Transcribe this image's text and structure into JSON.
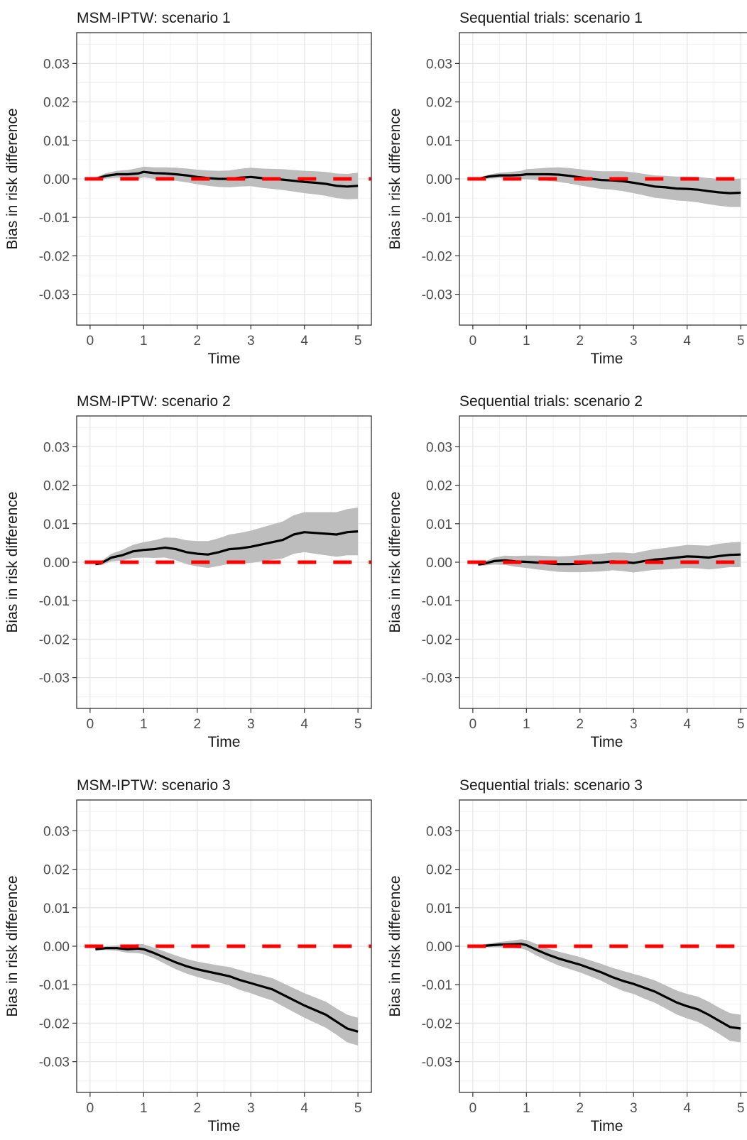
{
  "chart_data": [
    {
      "type": "line",
      "title": "MSM-IPTW: scenario 1",
      "xlabel": "Time",
      "ylabel": "Bias in risk difference",
      "xlim": [
        -0.25,
        5.25
      ],
      "ylim": [
        -0.038,
        0.038
      ],
      "x_ticks": [
        "0",
        "1",
        "2",
        "3",
        "4",
        "5"
      ],
      "y_ticks": [
        "0.03",
        "0.02",
        "0.01",
        "0.00",
        "-0.01",
        "-0.02",
        "-0.03"
      ],
      "grid": true,
      "reference_line": {
        "y": 0,
        "style": "dashed",
        "color": "#ff0000"
      },
      "series": [
        {
          "x": [
            0.1,
            0.3,
            0.5,
            0.7,
            0.9,
            1.0,
            1.2,
            1.4,
            1.6,
            1.8,
            2.0,
            2.2,
            2.4,
            2.6,
            2.8,
            3.0,
            3.2,
            3.4,
            3.6,
            3.8,
            4.0,
            4.2,
            4.4,
            4.6,
            4.8,
            5.0
          ],
          "y": [
            0.0,
            0.0008,
            0.0012,
            0.0012,
            0.0014,
            0.0018,
            0.0015,
            0.0014,
            0.0012,
            0.0009,
            0.0005,
            0.0002,
            0.0,
            0.0,
            0.0003,
            0.0005,
            0.0002,
            0.0,
            -0.0002,
            -0.0005,
            -0.0008,
            -0.001,
            -0.0013,
            -0.0018,
            -0.002,
            -0.0018
          ],
          "lower": [
            -0.0004,
            0.0001,
            0.0003,
            0.0001,
            0.0,
            0.0004,
            0.0,
            -0.0002,
            -0.0005,
            -0.0009,
            -0.0014,
            -0.0018,
            -0.0021,
            -0.0022,
            -0.002,
            -0.0019,
            -0.0023,
            -0.0026,
            -0.0029,
            -0.0033,
            -0.0037,
            -0.004,
            -0.0044,
            -0.005,
            -0.0053,
            -0.0052
          ],
          "upper": [
            0.0004,
            0.0015,
            0.0021,
            0.0023,
            0.0028,
            0.0032,
            0.003,
            0.003,
            0.0029,
            0.0027,
            0.0024,
            0.0022,
            0.0021,
            0.0022,
            0.0026,
            0.0029,
            0.0027,
            0.0026,
            0.0025,
            0.0023,
            0.0021,
            0.002,
            0.0018,
            0.0014,
            0.0013,
            0.0016
          ],
          "color": "#000000",
          "band_color": "#bdbdbd"
        }
      ]
    },
    {
      "type": "line",
      "title": "Sequential trials: scenario 1",
      "xlabel": "Time",
      "ylabel": "Bias in risk difference",
      "xlim": [
        -0.25,
        5.25
      ],
      "ylim": [
        -0.038,
        0.038
      ],
      "x_ticks": [
        "0",
        "1",
        "2",
        "3",
        "4",
        "5"
      ],
      "y_ticks": [
        "0.03",
        "0.02",
        "0.01",
        "0.00",
        "-0.01",
        "-0.02",
        "-0.03"
      ],
      "grid": true,
      "reference_line": {
        "y": 0,
        "style": "dashed",
        "color": "#ff0000"
      },
      "series": [
        {
          "x": [
            0.1,
            0.3,
            0.5,
            0.7,
            0.9,
            1.0,
            1.2,
            1.4,
            1.6,
            1.8,
            2.0,
            2.2,
            2.4,
            2.6,
            2.8,
            3.0,
            3.2,
            3.4,
            3.6,
            3.8,
            4.0,
            4.2,
            4.4,
            4.6,
            4.8,
            5.0
          ],
          "y": [
            0.0,
            0.0006,
            0.0009,
            0.0009,
            0.001,
            0.0012,
            0.0012,
            0.0012,
            0.0011,
            0.0008,
            0.0004,
            0.0,
            -0.0003,
            -0.0004,
            -0.0006,
            -0.001,
            -0.0015,
            -0.002,
            -0.0022,
            -0.0025,
            -0.0026,
            -0.0028,
            -0.0032,
            -0.0035,
            -0.0037,
            -0.0036
          ],
          "lower": [
            -0.0003,
            0.0001,
            0.0002,
            0.0,
            -0.0001,
            -0.0001,
            -0.0003,
            -0.0005,
            -0.0008,
            -0.0012,
            -0.0017,
            -0.0022,
            -0.0026,
            -0.0028,
            -0.0032,
            -0.0037,
            -0.0043,
            -0.0049,
            -0.0052,
            -0.0056,
            -0.0058,
            -0.0061,
            -0.0066,
            -0.007,
            -0.0073,
            -0.0073
          ],
          "upper": [
            0.0003,
            0.0011,
            0.0016,
            0.0018,
            0.0021,
            0.0025,
            0.0027,
            0.0029,
            0.003,
            0.0028,
            0.0025,
            0.0022,
            0.002,
            0.002,
            0.002,
            0.0017,
            0.0013,
            0.0009,
            0.0008,
            0.0006,
            0.0006,
            0.0005,
            0.0002,
            0.0,
            -0.0001,
            0.0001
          ],
          "color": "#000000",
          "band_color": "#bdbdbd"
        }
      ]
    },
    {
      "type": "line",
      "title": "MSM-IPTW: scenario 2",
      "xlabel": "Time",
      "ylabel": "Bias in risk difference",
      "xlim": [
        -0.25,
        5.25
      ],
      "ylim": [
        -0.038,
        0.038
      ],
      "x_ticks": [
        "0",
        "1",
        "2",
        "3",
        "4",
        "5"
      ],
      "y_ticks": [
        "0.03",
        "0.02",
        "0.01",
        "0.00",
        "-0.01",
        "-0.02",
        "-0.03"
      ],
      "grid": true,
      "reference_line": {
        "y": 0,
        "style": "dashed",
        "color": "#ff0000"
      },
      "series": [
        {
          "x": [
            0.1,
            0.2,
            0.4,
            0.6,
            0.8,
            1.0,
            1.2,
            1.4,
            1.6,
            1.8,
            2.0,
            2.2,
            2.4,
            2.6,
            2.8,
            3.0,
            3.2,
            3.4,
            3.6,
            3.8,
            4.0,
            4.2,
            4.4,
            4.6,
            4.8,
            5.0
          ],
          "y": [
            -0.0005,
            -0.0003,
            0.0012,
            0.0018,
            0.0028,
            0.0032,
            0.0034,
            0.0038,
            0.0034,
            0.0026,
            0.0022,
            0.002,
            0.0026,
            0.0034,
            0.0036,
            0.004,
            0.0046,
            0.0052,
            0.0058,
            0.0072,
            0.0078,
            0.0076,
            0.0074,
            0.0072,
            0.0078,
            0.008
          ],
          "lower": [
            -0.0008,
            -0.0008,
            0.0002,
            0.0004,
            0.0011,
            0.0012,
            0.0011,
            0.0012,
            0.0005,
            -0.0005,
            -0.0011,
            -0.0015,
            -0.001,
            -0.0004,
            -0.0004,
            -0.0002,
            0.0002,
            0.0006,
            0.001,
            0.0022,
            0.0026,
            0.0022,
            0.0018,
            0.0014,
            0.0018,
            0.0018
          ],
          "upper": [
            -0.0002,
            0.0002,
            0.0022,
            0.0032,
            0.0045,
            0.0052,
            0.0057,
            0.0064,
            0.0063,
            0.0057,
            0.0055,
            0.0055,
            0.0062,
            0.0072,
            0.0076,
            0.0082,
            0.009,
            0.0098,
            0.0106,
            0.0122,
            0.013,
            0.013,
            0.013,
            0.013,
            0.0138,
            0.0142
          ],
          "color": "#000000",
          "band_color": "#bdbdbd"
        }
      ]
    },
    {
      "type": "line",
      "title": "Sequential trials: scenario 2",
      "xlabel": "Time",
      "ylabel": "Bias in risk difference",
      "xlim": [
        -0.25,
        5.25
      ],
      "ylim": [
        -0.038,
        0.038
      ],
      "x_ticks": [
        "0",
        "1",
        "2",
        "3",
        "4",
        "5"
      ],
      "y_ticks": [
        "0.03",
        "0.02",
        "0.01",
        "0.00",
        "-0.01",
        "-0.02",
        "-0.03"
      ],
      "grid": true,
      "reference_line": {
        "y": 0,
        "style": "dashed",
        "color": "#ff0000"
      },
      "series": [
        {
          "x": [
            0.1,
            0.2,
            0.4,
            0.6,
            0.8,
            1.0,
            1.2,
            1.4,
            1.6,
            1.8,
            2.0,
            2.2,
            2.4,
            2.6,
            2.8,
            3.0,
            3.2,
            3.4,
            3.6,
            3.8,
            4.0,
            4.2,
            4.4,
            4.6,
            4.8,
            5.0
          ],
          "y": [
            -0.0006,
            -0.0004,
            0.0003,
            0.0005,
            0.0002,
            0.0001,
            -0.0001,
            -0.0003,
            -0.0005,
            -0.0005,
            -0.0004,
            -0.0002,
            -0.0001,
            0.0002,
            0.0001,
            -0.0002,
            0.0003,
            0.0007,
            0.0009,
            0.0012,
            0.0015,
            0.0014,
            0.0012,
            0.0016,
            0.0019,
            0.002
          ],
          "lower": [
            -0.0009,
            -0.0009,
            -0.0006,
            -0.0007,
            -0.0012,
            -0.0015,
            -0.0019,
            -0.0022,
            -0.0025,
            -0.0026,
            -0.0026,
            -0.0025,
            -0.0024,
            -0.0021,
            -0.0023,
            -0.0027,
            -0.0023,
            -0.002,
            -0.0019,
            -0.0017,
            -0.0015,
            -0.0016,
            -0.0019,
            -0.0016,
            -0.0013,
            -0.0013
          ],
          "upper": [
            -0.0003,
            0.0001,
            0.0012,
            0.0017,
            0.0016,
            0.0017,
            0.0017,
            0.0016,
            0.0015,
            0.0016,
            0.0018,
            0.0021,
            0.0022,
            0.0025,
            0.0025,
            0.0023,
            0.0029,
            0.0034,
            0.0037,
            0.0041,
            0.0045,
            0.0044,
            0.0043,
            0.0048,
            0.0051,
            0.0053
          ],
          "color": "#000000",
          "band_color": "#bdbdbd"
        }
      ]
    },
    {
      "type": "line",
      "title": "MSM-IPTW: scenario 3",
      "xlabel": "Time",
      "ylabel": "Bias in risk difference",
      "xlim": [
        -0.25,
        5.25
      ],
      "ylim": [
        -0.038,
        0.038
      ],
      "x_ticks": [
        "0",
        "1",
        "2",
        "3",
        "4",
        "5"
      ],
      "y_ticks": [
        "0.03",
        "0.02",
        "0.01",
        "0.00",
        "-0.01",
        "-0.02",
        "-0.03"
      ],
      "grid": true,
      "reference_line": {
        "y": 0,
        "style": "dashed",
        "color": "#ff0000"
      },
      "series": [
        {
          "x": [
            0.1,
            0.3,
            0.5,
            0.7,
            0.9,
            1.0,
            1.2,
            1.4,
            1.6,
            1.8,
            2.0,
            2.2,
            2.4,
            2.6,
            2.8,
            3.0,
            3.2,
            3.4,
            3.6,
            3.8,
            4.0,
            4.2,
            4.4,
            4.6,
            4.8,
            5.0
          ],
          "y": [
            -0.0008,
            -0.0005,
            -0.0005,
            -0.0008,
            -0.0006,
            -0.0008,
            -0.0018,
            -0.003,
            -0.0042,
            -0.0052,
            -0.006,
            -0.0066,
            -0.0072,
            -0.0078,
            -0.0088,
            -0.0096,
            -0.0104,
            -0.0112,
            -0.0126,
            -0.014,
            -0.0154,
            -0.0166,
            -0.0178,
            -0.0196,
            -0.0214,
            -0.0222
          ],
          "lower": [
            -0.0011,
            -0.001,
            -0.0012,
            -0.0017,
            -0.0018,
            -0.0021,
            -0.0032,
            -0.0046,
            -0.006,
            -0.0071,
            -0.008,
            -0.0087,
            -0.0094,
            -0.0102,
            -0.0114,
            -0.0122,
            -0.0132,
            -0.0141,
            -0.0156,
            -0.0171,
            -0.0186,
            -0.0199,
            -0.0212,
            -0.023,
            -0.025,
            -0.0258
          ],
          "upper": [
            -0.0005,
            0.0,
            0.0002,
            0.0001,
            0.0006,
            0.0005,
            -0.0004,
            -0.0014,
            -0.0024,
            -0.0033,
            -0.004,
            -0.0045,
            -0.005,
            -0.0054,
            -0.0062,
            -0.007,
            -0.0076,
            -0.0083,
            -0.0096,
            -0.0109,
            -0.0122,
            -0.0133,
            -0.0144,
            -0.0162,
            -0.0178,
            -0.0186
          ],
          "color": "#000000",
          "band_color": "#bdbdbd"
        }
      ]
    },
    {
      "type": "line",
      "title": "Sequential trials: scenario 3",
      "xlabel": "Time",
      "ylabel": "Bias in risk difference",
      "xlim": [
        -0.25,
        5.25
      ],
      "ylim": [
        -0.038,
        0.038
      ],
      "x_ticks": [
        "0",
        "1",
        "2",
        "3",
        "4",
        "5"
      ],
      "y_ticks": [
        "0.03",
        "0.02",
        "0.01",
        "0.00",
        "-0.01",
        "-0.02",
        "-0.03"
      ],
      "grid": true,
      "reference_line": {
        "y": 0,
        "style": "dashed",
        "color": "#ff0000"
      },
      "series": [
        {
          "x": [
            0.1,
            0.3,
            0.5,
            0.7,
            0.9,
            1.0,
            1.2,
            1.4,
            1.6,
            1.8,
            2.0,
            2.2,
            2.4,
            2.6,
            2.8,
            3.0,
            3.2,
            3.4,
            3.6,
            3.8,
            4.0,
            4.2,
            4.4,
            4.6,
            4.8,
            5.0
          ],
          "y": [
            0.0,
            0.0002,
            0.0004,
            0.0005,
            0.0006,
            0.0003,
            -0.001,
            -0.0022,
            -0.0032,
            -0.004,
            -0.0048,
            -0.0058,
            -0.0068,
            -0.008,
            -0.009,
            -0.0098,
            -0.0108,
            -0.0118,
            -0.0132,
            -0.0146,
            -0.0156,
            -0.0164,
            -0.0178,
            -0.0194,
            -0.021,
            -0.0214
          ],
          "lower": [
            -0.0003,
            -0.0003,
            -0.0003,
            -0.0004,
            -0.0006,
            -0.001,
            -0.0025,
            -0.0038,
            -0.005,
            -0.0059,
            -0.0068,
            -0.0079,
            -0.009,
            -0.0104,
            -0.0116,
            -0.0124,
            -0.0136,
            -0.0147,
            -0.0162,
            -0.0177,
            -0.0188,
            -0.0197,
            -0.0212,
            -0.0228,
            -0.0246,
            -0.025
          ],
          "upper": [
            0.0003,
            0.0007,
            0.0011,
            0.0014,
            0.0018,
            0.0016,
            0.0005,
            -0.0006,
            -0.0014,
            -0.0021,
            -0.0028,
            -0.0037,
            -0.0046,
            -0.0056,
            -0.0064,
            -0.0072,
            -0.008,
            -0.0089,
            -0.0102,
            -0.0115,
            -0.0124,
            -0.0131,
            -0.0144,
            -0.016,
            -0.0174,
            -0.0178
          ],
          "color": "#000000",
          "band_color": "#bdbdbd"
        }
      ]
    }
  ]
}
